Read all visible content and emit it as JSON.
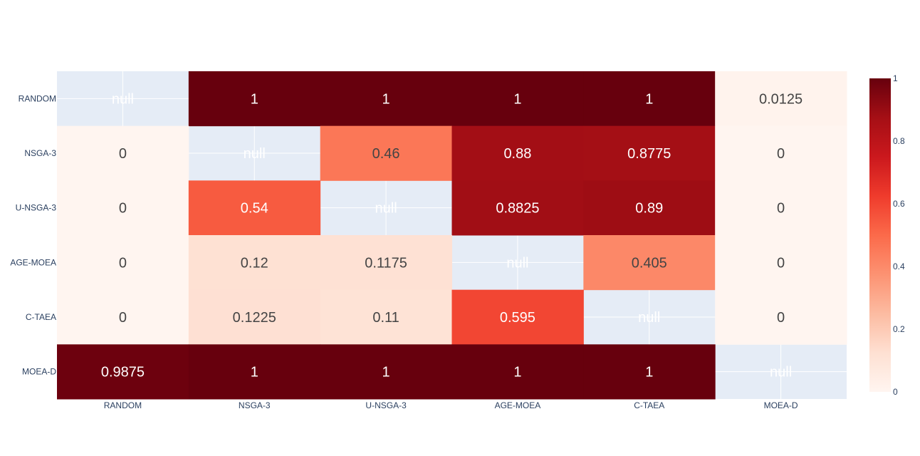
{
  "chart_data": {
    "type": "heatmap",
    "title": "",
    "xlabel": "",
    "ylabel": "",
    "x": [
      "RANDOM",
      "NSGA-3",
      "U-NSGA-3",
      "AGE-MOEA",
      "C-TAEA",
      "MOEA-D"
    ],
    "y": [
      "RANDOM",
      "NSGA-3",
      "U-NSGA-3",
      "AGE-MOEA",
      "C-TAEA",
      "MOEA-D"
    ],
    "z": [
      [
        null,
        1,
        1,
        1,
        1,
        0.0125
      ],
      [
        0,
        null,
        0.46,
        0.88,
        0.8775,
        0
      ],
      [
        0,
        0.54,
        null,
        0.8825,
        0.89,
        0
      ],
      [
        0,
        0.12,
        0.1175,
        null,
        0.405,
        0
      ],
      [
        0,
        0.1225,
        0.11,
        0.595,
        null,
        0
      ],
      [
        0.9875,
        1,
        1,
        1,
        1,
        null
      ]
    ],
    "null_label": "null",
    "zlim": [
      0,
      1
    ],
    "colorscale": "Reds",
    "colorbar": {
      "ticks": [
        0,
        0.2,
        0.4,
        0.6,
        0.8,
        1
      ],
      "tick_labels": [
        "0",
        "0.2",
        "0.4",
        "0.6",
        "0.8",
        "1"
      ],
      "position": "right"
    },
    "grid": true,
    "colors": {
      "background": "#e5ecf6",
      "text_dark": "#444444",
      "text_light": "#ffffff"
    }
  }
}
